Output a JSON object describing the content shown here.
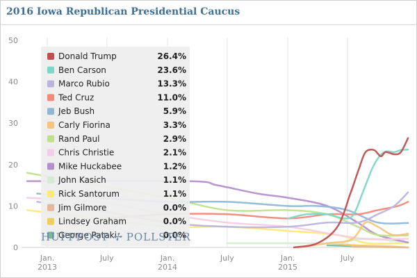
{
  "title": "2016 Iowa Republican Presidential Caucus",
  "brand": {
    "left": "HUFFPOST",
    "mark": "✢",
    "right": "POLLSTER"
  },
  "chart_data": {
    "type": "line",
    "title": "2016 Iowa Republican Presidential Caucus",
    "xlabel": "",
    "ylabel": "",
    "ylim": [
      0,
      50
    ],
    "yticks": [
      0,
      10,
      20,
      30,
      40,
      50
    ],
    "xlim": [
      "2012-10-15",
      "2016-01-05"
    ],
    "xticks": [
      {
        "date": "2013-01-01",
        "label": [
          "Jan.",
          "2013"
        ]
      },
      {
        "date": "2013-07-01",
        "label": [
          "July"
        ]
      },
      {
        "date": "2014-01-01",
        "label": [
          "Jan.",
          "2014"
        ]
      },
      {
        "date": "2014-07-01",
        "label": [
          "July"
        ]
      },
      {
        "date": "2015-01-01",
        "label": [
          "Jan.",
          "2015"
        ]
      },
      {
        "date": "2015-07-01",
        "label": [
          "July"
        ]
      }
    ],
    "grid": "vertical",
    "legend_position": "top-left",
    "series": [
      {
        "name": "Donald Trump",
        "value": "26.4%",
        "color": "#c0504d",
        "points": [
          [
            "2015-01-20",
            0
          ],
          [
            "2015-04-01",
            1
          ],
          [
            "2015-06-01",
            5
          ],
          [
            "2015-07-10",
            13
          ],
          [
            "2015-08-05",
            19
          ],
          [
            "2015-08-25",
            23
          ],
          [
            "2015-09-20",
            23.5
          ],
          [
            "2015-10-10",
            22
          ],
          [
            "2015-10-25",
            23
          ],
          [
            "2015-11-20",
            22.5
          ],
          [
            "2015-12-10",
            23
          ],
          [
            "2016-01-01",
            26.4
          ]
        ]
      },
      {
        "name": "Ben Carson",
        "value": "23.6%",
        "color": "#7fd6c8",
        "points": [
          [
            "2015-01-01",
            7
          ],
          [
            "2015-03-01",
            8
          ],
          [
            "2015-05-01",
            8
          ],
          [
            "2015-06-20",
            7
          ],
          [
            "2015-07-20",
            8
          ],
          [
            "2015-08-20",
            14
          ],
          [
            "2015-09-20",
            20
          ],
          [
            "2015-10-20",
            23
          ],
          [
            "2015-11-20",
            23
          ],
          [
            "2015-12-10",
            23.5
          ],
          [
            "2016-01-01",
            23.6
          ]
        ]
      },
      {
        "name": "Marco Rubio",
        "value": "13.3%",
        "color": "#b9b5dc",
        "points": [
          [
            "2012-12-01",
            11
          ],
          [
            "2013-06-01",
            9
          ],
          [
            "2014-01-01",
            6
          ],
          [
            "2014-07-01",
            5
          ],
          [
            "2015-01-01",
            5
          ],
          [
            "2015-05-01",
            6
          ],
          [
            "2015-08-01",
            6
          ],
          [
            "2015-10-01",
            8
          ],
          [
            "2015-11-20",
            10
          ],
          [
            "2016-01-01",
            13.3
          ]
        ]
      },
      {
        "name": "Ted Cruz",
        "value": "11.0%",
        "color": "#f08a7a",
        "points": [
          [
            "2013-07-01",
            7
          ],
          [
            "2014-01-01",
            8
          ],
          [
            "2014-07-01",
            8
          ],
          [
            "2015-01-01",
            7
          ],
          [
            "2015-05-01",
            8
          ],
          [
            "2015-08-01",
            8
          ],
          [
            "2015-10-01",
            9
          ],
          [
            "2015-12-01",
            10
          ],
          [
            "2016-01-01",
            11
          ]
        ]
      },
      {
        "name": "Jeb Bush",
        "value": "5.9%",
        "color": "#8fb8d8",
        "points": [
          [
            "2012-12-01",
            13
          ],
          [
            "2013-06-01",
            12
          ],
          [
            "2014-01-01",
            11
          ],
          [
            "2014-07-01",
            11
          ],
          [
            "2015-01-01",
            10
          ],
          [
            "2015-04-01",
            10
          ],
          [
            "2015-07-01",
            9
          ],
          [
            "2015-10-01",
            6
          ],
          [
            "2016-01-01",
            5.9
          ]
        ]
      },
      {
        "name": "Carly Fiorina",
        "value": "3.3%",
        "color": "#f5c47e",
        "points": [
          [
            "2015-02-01",
            0
          ],
          [
            "2015-05-01",
            1
          ],
          [
            "2015-07-15",
            2
          ],
          [
            "2015-08-25",
            6
          ],
          [
            "2015-10-01",
            5
          ],
          [
            "2015-11-15",
            3
          ],
          [
            "2016-01-01",
            3.3
          ]
        ]
      },
      {
        "name": "Rand Paul",
        "value": "2.9%",
        "color": "#c1e08a",
        "points": [
          [
            "2012-11-01",
            18
          ],
          [
            "2013-06-01",
            15
          ],
          [
            "2014-01-01",
            12
          ],
          [
            "2014-07-01",
            9
          ],
          [
            "2015-01-01",
            9
          ],
          [
            "2015-05-01",
            8
          ],
          [
            "2015-08-01",
            5
          ],
          [
            "2015-10-01",
            3
          ],
          [
            "2016-01-01",
            2.9
          ]
        ]
      },
      {
        "name": "Chris Christie",
        "value": "2.1%",
        "color": "#f6cde6",
        "points": [
          [
            "2012-11-01",
            12
          ],
          [
            "2013-06-01",
            11
          ],
          [
            "2014-01-01",
            8
          ],
          [
            "2014-07-01",
            6
          ],
          [
            "2015-01-01",
            5
          ],
          [
            "2015-06-01",
            3
          ],
          [
            "2015-09-01",
            2
          ],
          [
            "2016-01-01",
            2.1
          ]
        ]
      },
      {
        "name": "Mike Huckabee",
        "value": "1.2%",
        "color": "#b48fcf",
        "points": [
          [
            "2012-11-01",
            16
          ],
          [
            "2014-03-01",
            16
          ],
          [
            "2014-06-01",
            15
          ],
          [
            "2014-10-01",
            13
          ],
          [
            "2015-01-01",
            12
          ],
          [
            "2015-05-01",
            10
          ],
          [
            "2015-08-01",
            6
          ],
          [
            "2015-10-01",
            3
          ],
          [
            "2016-01-01",
            1.2
          ]
        ]
      },
      {
        "name": "John Kasich",
        "value": "1.1%",
        "color": "#d5ecd2",
        "points": [
          [
            "2014-07-01",
            1
          ],
          [
            "2015-01-01",
            1
          ],
          [
            "2015-06-01",
            1
          ],
          [
            "2015-08-01",
            2
          ],
          [
            "2015-10-01",
            2
          ],
          [
            "2016-01-01",
            1.1
          ]
        ]
      },
      {
        "name": "Rick Santorum",
        "value": "1.1%",
        "color": "#ffe87a",
        "points": [
          [
            "2012-11-01",
            9
          ],
          [
            "2013-06-01",
            7
          ],
          [
            "2014-01-01",
            5
          ],
          [
            "2014-07-01",
            5
          ],
          [
            "2015-01-01",
            4
          ],
          [
            "2015-06-01",
            3
          ],
          [
            "2015-09-01",
            1
          ],
          [
            "2016-01-01",
            1.1
          ]
        ]
      },
      {
        "name": "Jim Gilmore",
        "value": "0.0%",
        "color": "#e8b79a",
        "points": [
          [
            "2015-07-15",
            0.2
          ],
          [
            "2015-10-01",
            0.1
          ],
          [
            "2016-01-01",
            0
          ]
        ]
      },
      {
        "name": "Lindsey Graham",
        "value": "0.0%",
        "color": "#f2cf5a",
        "points": [
          [
            "2015-05-01",
            1
          ],
          [
            "2015-08-01",
            0.5
          ],
          [
            "2015-11-01",
            0.3
          ],
          [
            "2016-01-01",
            0
          ]
        ]
      },
      {
        "name": "George Pataki",
        "value": "0.0%",
        "color": "#79b79e",
        "points": [
          [
            "2015-05-01",
            0.5
          ],
          [
            "2015-09-01",
            0.2
          ],
          [
            "2016-01-01",
            0
          ]
        ]
      }
    ]
  }
}
